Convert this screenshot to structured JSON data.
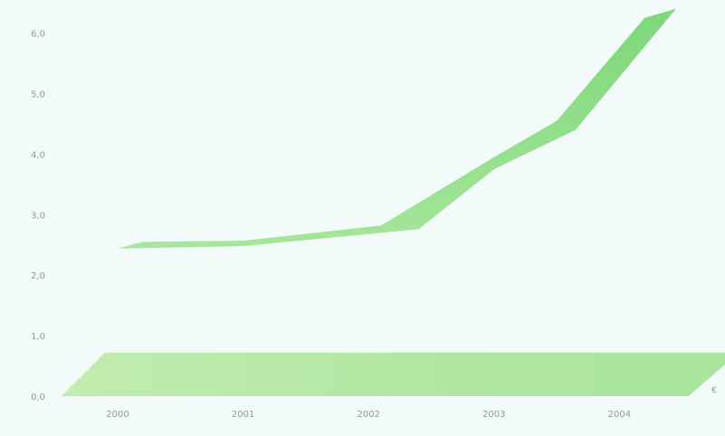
{
  "chart_data": {
    "type": "area",
    "title": "",
    "xlabel": "",
    "ylabel": "",
    "x": [
      "2000",
      "2001",
      "2002",
      "2003",
      "2004"
    ],
    "ylim": [
      0,
      6.5
    ],
    "y_ticks": [
      "0,0",
      "1,0",
      "2,0",
      "3,0",
      "4,0",
      "5,0",
      "6,0"
    ],
    "grid": false,
    "legend": "none",
    "series": [
      {
        "upper": [
          {
            "x": 2000.2,
            "y": 2.55
          },
          {
            "x": 2001.0,
            "y": 2.57
          },
          {
            "x": 2002.1,
            "y": 2.82
          },
          {
            "x": 2003.0,
            "y": 3.95
          },
          {
            "x": 2003.5,
            "y": 4.55
          },
          {
            "x": 2004.2,
            "y": 6.25
          },
          {
            "x": 2004.45,
            "y": 6.4
          }
        ],
        "lower": [
          {
            "x": 2000.0,
            "y": 2.44
          },
          {
            "x": 2001.0,
            "y": 2.48
          },
          {
            "x": 2002.4,
            "y": 2.76
          },
          {
            "x": 2003.0,
            "y": 3.75
          },
          {
            "x": 2003.65,
            "y": 4.4
          },
          {
            "x": 2004.45,
            "y": 6.4
          }
        ],
        "color": "#8fd98a"
      },
      {
        "upper": [
          {
            "x": 1999.55,
            "y": 0.0
          },
          {
            "x": 1999.9,
            "y": 0.72
          },
          {
            "x": 2004.95,
            "y": 0.72
          }
        ],
        "lower": [
          {
            "x": 1999.55,
            "y": 0.0
          },
          {
            "x": 2004.55,
            "y": 0.0
          },
          {
            "x": 2004.95,
            "y": 0.72
          }
        ],
        "color": "#b4e8a6"
      }
    ],
    "corner_mark": "€"
  }
}
